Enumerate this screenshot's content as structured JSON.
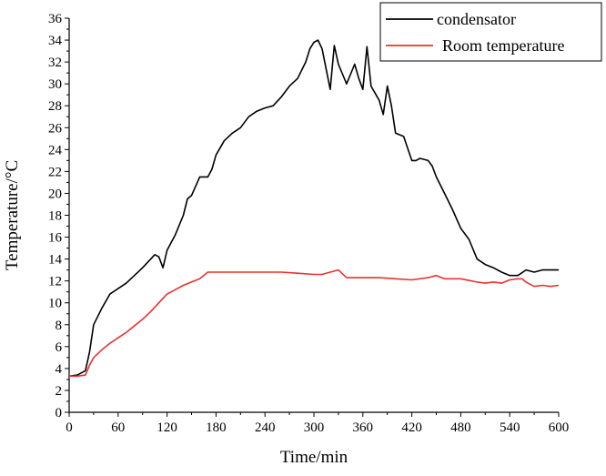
{
  "chart_data": {
    "type": "line",
    "title": "",
    "xlabel": "Time/min",
    "ylabel": "Temperature/°C",
    "xlim": [
      0,
      600
    ],
    "ylim": [
      0,
      36
    ],
    "xticks": [
      0,
      60,
      120,
      180,
      240,
      300,
      360,
      420,
      480,
      540,
      600
    ],
    "yticks": [
      0,
      2,
      4,
      6,
      8,
      10,
      12,
      14,
      16,
      18,
      20,
      22,
      24,
      26,
      28,
      30,
      32,
      34,
      36
    ],
    "grid": false,
    "legend": "top-right",
    "series": [
      {
        "name": "condensator",
        "color": "#000000",
        "x": [
          0,
          10,
          20,
          25,
          30,
          40,
          50,
          60,
          70,
          80,
          90,
          100,
          105,
          110,
          115,
          120,
          130,
          140,
          145,
          150,
          160,
          170,
          175,
          180,
          190,
          200,
          210,
          220,
          230,
          240,
          250,
          260,
          270,
          280,
          290,
          295,
          300,
          305,
          310,
          320,
          325,
          330,
          340,
          350,
          355,
          360,
          365,
          370,
          380,
          385,
          390,
          395,
          400,
          410,
          420,
          425,
          430,
          440,
          445,
          450,
          460,
          470,
          480,
          490,
          500,
          510,
          520,
          530,
          540,
          545,
          550,
          560,
          570,
          580,
          590,
          600
        ],
        "y": [
          3.3,
          3.4,
          3.8,
          5.5,
          8.0,
          9.5,
          10.8,
          11.3,
          11.8,
          12.5,
          13.2,
          14.0,
          14.4,
          14.2,
          13.2,
          14.8,
          16.2,
          18.0,
          19.5,
          19.8,
          21.5,
          21.5,
          22.2,
          23.5,
          24.8,
          25.5,
          26.0,
          27.0,
          27.5,
          27.8,
          28.0,
          28.8,
          29.8,
          30.5,
          32.0,
          33.2,
          33.8,
          34.0,
          33.2,
          29.5,
          33.5,
          31.8,
          30.0,
          31.8,
          30.5,
          29.5,
          33.4,
          29.8,
          28.5,
          27.2,
          29.8,
          28.0,
          25.5,
          25.2,
          23.0,
          23.0,
          23.2,
          23.0,
          22.5,
          21.5,
          20.0,
          18.5,
          16.8,
          15.8,
          14.0,
          13.5,
          13.2,
          12.8,
          12.5,
          12.5,
          12.5,
          13.0,
          12.8,
          13.0,
          13.0,
          13.0
        ]
      },
      {
        "name": "Room temperature",
        "color": "#e8322e",
        "x": [
          0,
          10,
          20,
          25,
          30,
          40,
          50,
          60,
          70,
          80,
          90,
          100,
          110,
          120,
          130,
          140,
          150,
          160,
          170,
          180,
          200,
          220,
          240,
          260,
          280,
          300,
          310,
          320,
          330,
          340,
          360,
          380,
          400,
          420,
          440,
          450,
          460,
          480,
          500,
          510,
          520,
          530,
          540,
          550,
          555,
          560,
          570,
          580,
          590,
          600
        ],
        "y": [
          3.3,
          3.3,
          3.4,
          4.3,
          5.0,
          5.7,
          6.3,
          6.8,
          7.3,
          7.9,
          8.5,
          9.2,
          10.0,
          10.8,
          11.2,
          11.6,
          11.9,
          12.2,
          12.8,
          12.8,
          12.8,
          12.8,
          12.8,
          12.8,
          12.7,
          12.6,
          12.6,
          12.8,
          13.0,
          12.3,
          12.3,
          12.3,
          12.2,
          12.1,
          12.3,
          12.5,
          12.2,
          12.2,
          11.9,
          11.8,
          11.9,
          11.8,
          12.1,
          12.2,
          12.2,
          11.9,
          11.5,
          11.6,
          11.5,
          11.6
        ]
      }
    ]
  }
}
